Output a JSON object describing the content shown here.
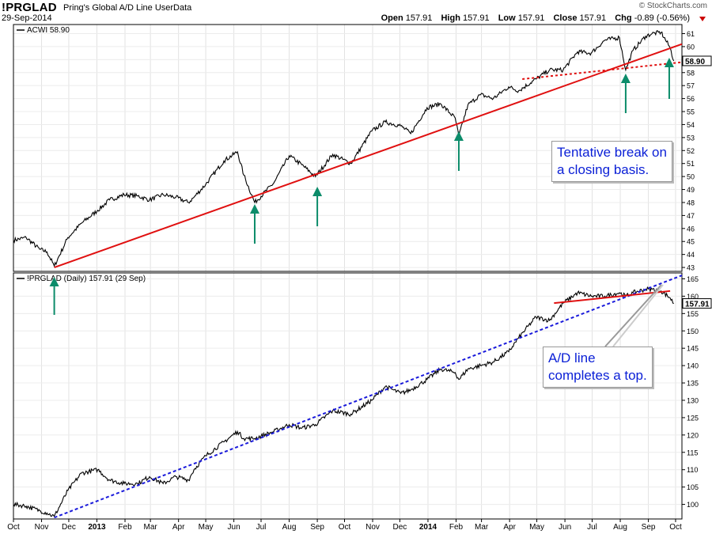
{
  "header": {
    "symbol": "!PRGLAD",
    "description": "Pring's Global A/D Line UserData",
    "date": "29-Sep-2014",
    "brand": "© StockCharts.com",
    "quote": {
      "open_label": "Open",
      "open": "157.91",
      "high_label": "High",
      "high": "157.91",
      "low_label": "Low",
      "low": "157.91",
      "close_label": "Close",
      "close": "157.91",
      "chg_label": "Chg",
      "chg": "-0.89 (-0.56%)"
    }
  },
  "colors": {
    "price_line": "#000000",
    "trendline": "#e01010",
    "ad_trendline": "#1a1adb",
    "arrow": "#0c8c6a",
    "note_text": "#0a1fd6"
  },
  "annotations": {
    "top_note": [
      "Tentative break on",
      "a closing basis."
    ],
    "bottom_note": [
      "A/D line",
      "completes a top."
    ]
  },
  "chart_data": [
    {
      "type": "line",
      "legend": "ACWI 58.90",
      "last_value": "58.90",
      "ylim": [
        42.7,
        61.7
      ],
      "yticks": [
        "43",
        "44",
        "45",
        "46",
        "47",
        "48",
        "49",
        "50",
        "51",
        "52",
        "53",
        "54",
        "55",
        "56",
        "57",
        "58",
        "59",
        "60",
        "61"
      ],
      "series": [
        {
          "name": "ACWI",
          "dates": [
            "2012-10-01",
            "2012-10-15",
            "2012-10-30",
            "2012-11-07",
            "2012-11-15",
            "2012-11-30",
            "2012-12-15",
            "2013-01-02",
            "2013-01-15",
            "2013-01-31",
            "2013-02-15",
            "2013-02-28",
            "2013-03-15",
            "2013-03-29",
            "2013-04-12",
            "2013-04-18",
            "2013-05-01",
            "2013-05-21",
            "2013-06-05",
            "2013-06-12",
            "2013-06-24",
            "2013-07-15",
            "2013-08-01",
            "2013-08-15",
            "2013-08-30",
            "2013-09-18",
            "2013-10-08",
            "2013-10-31",
            "2013-11-15",
            "2013-12-02",
            "2013-12-13",
            "2013-12-31",
            "2014-01-15",
            "2014-01-31",
            "2014-02-04",
            "2014-02-14",
            "2014-02-28",
            "2014-03-14",
            "2014-03-31",
            "2014-04-11",
            "2014-04-30",
            "2014-05-15",
            "2014-05-30",
            "2014-06-15",
            "2014-06-30",
            "2014-07-15",
            "2014-07-31",
            "2014-08-07",
            "2014-08-15",
            "2014-08-29",
            "2014-09-05",
            "2014-09-15",
            "2014-09-25",
            "2014-09-29"
          ],
          "values": [
            45.1,
            45.3,
            44.4,
            44.2,
            43.1,
            45.3,
            46.4,
            47.4,
            48.2,
            48.6,
            48.5,
            48.2,
            48.6,
            48.4,
            48.0,
            48.4,
            49.4,
            51.2,
            51.9,
            50.1,
            48.0,
            49.5,
            51.6,
            50.9,
            50.0,
            51.7,
            51.0,
            53.5,
            54.2,
            53.9,
            53.3,
            55.3,
            55.6,
            54.5,
            53.1,
            55.5,
            56.3,
            56.0,
            56.9,
            56.6,
            57.5,
            58.2,
            58.2,
            59.6,
            59.5,
            60.5,
            60.7,
            58.2,
            59.7,
            60.8,
            61.0,
            61.1,
            59.9,
            58.9
          ]
        }
      ],
      "trendlines": [
        {
          "style": "solid",
          "from": [
            "2012-11-15",
            43.0
          ],
          "to": [
            "2014-10-08",
            60.2
          ]
        },
        {
          "style": "dashed",
          "from": [
            "2014-04-15",
            57.5
          ],
          "to": [
            "2014-10-08",
            58.8
          ]
        }
      ],
      "arrows": [
        "2012-11-15",
        "2013-06-24",
        "2013-09-01",
        "2014-02-04",
        "2014-08-07",
        "2014-09-24"
      ]
    },
    {
      "type": "line",
      "legend": "!PRGLAD (Daily) 157.91 (29 Sep)",
      "last_value": "157.91",
      "ylim": [
        95.8,
        166.7
      ],
      "yticks": [
        "100",
        "105",
        "110",
        "115",
        "120",
        "125",
        "130",
        "135",
        "140",
        "145",
        "150",
        "155",
        "160",
        "165"
      ],
      "series": [
        {
          "name": "!PRGLAD",
          "dates": [
            "2012-10-01",
            "2012-10-15",
            "2012-10-30",
            "2012-11-07",
            "2012-11-15",
            "2012-11-30",
            "2012-12-15",
            "2013-01-02",
            "2013-01-15",
            "2013-01-31",
            "2013-02-15",
            "2013-02-28",
            "2013-03-15",
            "2013-03-29",
            "2013-04-12",
            "2013-04-18",
            "2013-05-01",
            "2013-05-21",
            "2013-06-05",
            "2013-06-12",
            "2013-06-24",
            "2013-07-15",
            "2013-08-01",
            "2013-08-15",
            "2013-08-30",
            "2013-09-18",
            "2013-10-08",
            "2013-10-31",
            "2013-11-15",
            "2013-12-02",
            "2013-12-13",
            "2013-12-31",
            "2014-01-15",
            "2014-01-31",
            "2014-02-04",
            "2014-02-14",
            "2014-02-28",
            "2014-03-14",
            "2014-03-31",
            "2014-04-11",
            "2014-04-30",
            "2014-05-15",
            "2014-05-30",
            "2014-06-15",
            "2014-06-30",
            "2014-07-15",
            "2014-07-31",
            "2014-08-07",
            "2014-08-15",
            "2014-08-29",
            "2014-09-05",
            "2014-09-15",
            "2014-09-25",
            "2014-09-29"
          ],
          "values": [
            100,
            99.5,
            98.2,
            97.5,
            96.5,
            104,
            109,
            110,
            107,
            106,
            106,
            108,
            106,
            108,
            107,
            110,
            114,
            118,
            121,
            119,
            119,
            121,
            123,
            122,
            123,
            127,
            126,
            130,
            134,
            132,
            133,
            136,
            139,
            138,
            136,
            139,
            140,
            141,
            144,
            148,
            154,
            153,
            158,
            161,
            160,
            160,
            161,
            160,
            161,
            162,
            162,
            161.5,
            159.5,
            157.9
          ]
        }
      ],
      "trendlines": [
        {
          "style": "dashed",
          "from": [
            "2012-11-15",
            96.2
          ],
          "to": [
            "2014-10-08",
            166.0
          ]
        },
        {
          "style": "solid",
          "from": [
            "2014-05-20",
            158.0
          ],
          "to": [
            "2014-09-25",
            161.5
          ]
        }
      ]
    }
  ],
  "x_axis": {
    "ticks": [
      {
        "date": "2012-10-01",
        "label": "Oct"
      },
      {
        "date": "2012-11-01",
        "label": "Nov"
      },
      {
        "date": "2012-12-01",
        "label": "Dec"
      },
      {
        "date": "2013-01-01",
        "label": "2013",
        "bold": true
      },
      {
        "date": "2013-02-01",
        "label": "Feb"
      },
      {
        "date": "2013-03-01",
        "label": "Mar"
      },
      {
        "date": "2013-04-01",
        "label": "Apr"
      },
      {
        "date": "2013-05-01",
        "label": "May"
      },
      {
        "date": "2013-06-01",
        "label": "Jun"
      },
      {
        "date": "2013-07-01",
        "label": "Jul"
      },
      {
        "date": "2013-08-01",
        "label": "Aug"
      },
      {
        "date": "2013-09-01",
        "label": "Sep"
      },
      {
        "date": "2013-10-01",
        "label": "Oct"
      },
      {
        "date": "2013-11-01",
        "label": "Nov"
      },
      {
        "date": "2013-12-01",
        "label": "Dec"
      },
      {
        "date": "2014-01-01",
        "label": "2014",
        "bold": true
      },
      {
        "date": "2014-02-01",
        "label": "Feb"
      },
      {
        "date": "2014-03-01",
        "label": "Mar"
      },
      {
        "date": "2014-04-01",
        "label": "Apr"
      },
      {
        "date": "2014-05-01",
        "label": "May"
      },
      {
        "date": "2014-06-01",
        "label": "Jun"
      },
      {
        "date": "2014-07-01",
        "label": "Jul"
      },
      {
        "date": "2014-08-01",
        "label": "Aug"
      },
      {
        "date": "2014-09-01",
        "label": "Sep"
      },
      {
        "date": "2014-10-01",
        "label": "Oct"
      }
    ]
  }
}
